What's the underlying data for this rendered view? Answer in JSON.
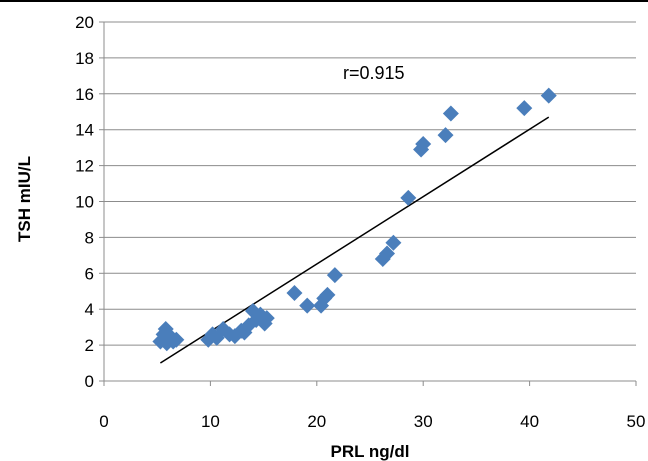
{
  "chart_data": {
    "type": "scatter",
    "xlabel": "PRL ng/dl",
    "ylabel": "TSH mIU/L",
    "xlim": [
      0,
      50
    ],
    "ylim": [
      0,
      20
    ],
    "x_ticks": [
      0,
      10,
      20,
      30,
      40,
      50
    ],
    "y_ticks": [
      0,
      2,
      4,
      6,
      8,
      10,
      12,
      14,
      16,
      18,
      20
    ],
    "grid": "horizontal",
    "annotation": "r=0.915",
    "marker_color": "#4a7ebb",
    "trendline": {
      "x": [
        5.3,
        41.8
      ],
      "y": [
        1.0,
        14.7
      ]
    },
    "points": [
      {
        "x": 5.3,
        "y": 2.2
      },
      {
        "x": 5.6,
        "y": 2.6
      },
      {
        "x": 5.8,
        "y": 2.9
      },
      {
        "x": 5.9,
        "y": 2.1
      },
      {
        "x": 6.2,
        "y": 2.5
      },
      {
        "x": 6.5,
        "y": 2.2
      },
      {
        "x": 6.8,
        "y": 2.3
      },
      {
        "x": 9.8,
        "y": 2.3
      },
      {
        "x": 10.2,
        "y": 2.6
      },
      {
        "x": 10.6,
        "y": 2.4
      },
      {
        "x": 11.2,
        "y": 2.9
      },
      {
        "x": 11.8,
        "y": 2.6
      },
      {
        "x": 12.3,
        "y": 2.5
      },
      {
        "x": 12.9,
        "y": 2.8
      },
      {
        "x": 13.2,
        "y": 2.7
      },
      {
        "x": 13.6,
        "y": 3.1
      },
      {
        "x": 14.0,
        "y": 3.9
      },
      {
        "x": 14.3,
        "y": 3.4
      },
      {
        "x": 14.7,
        "y": 3.7
      },
      {
        "x": 15.1,
        "y": 3.2
      },
      {
        "x": 15.3,
        "y": 3.5
      },
      {
        "x": 17.9,
        "y": 4.9
      },
      {
        "x": 19.1,
        "y": 4.2
      },
      {
        "x": 20.4,
        "y": 4.2
      },
      {
        "x": 20.7,
        "y": 4.6
      },
      {
        "x": 21.0,
        "y": 4.8
      },
      {
        "x": 21.7,
        "y": 5.9
      },
      {
        "x": 26.2,
        "y": 6.8
      },
      {
        "x": 26.6,
        "y": 7.1
      },
      {
        "x": 27.2,
        "y": 7.7
      },
      {
        "x": 28.6,
        "y": 10.2
      },
      {
        "x": 29.8,
        "y": 12.9
      },
      {
        "x": 30.0,
        "y": 13.2
      },
      {
        "x": 32.1,
        "y": 13.7
      },
      {
        "x": 32.6,
        "y": 14.9
      },
      {
        "x": 39.5,
        "y": 15.2
      },
      {
        "x": 41.8,
        "y": 15.9
      }
    ]
  }
}
